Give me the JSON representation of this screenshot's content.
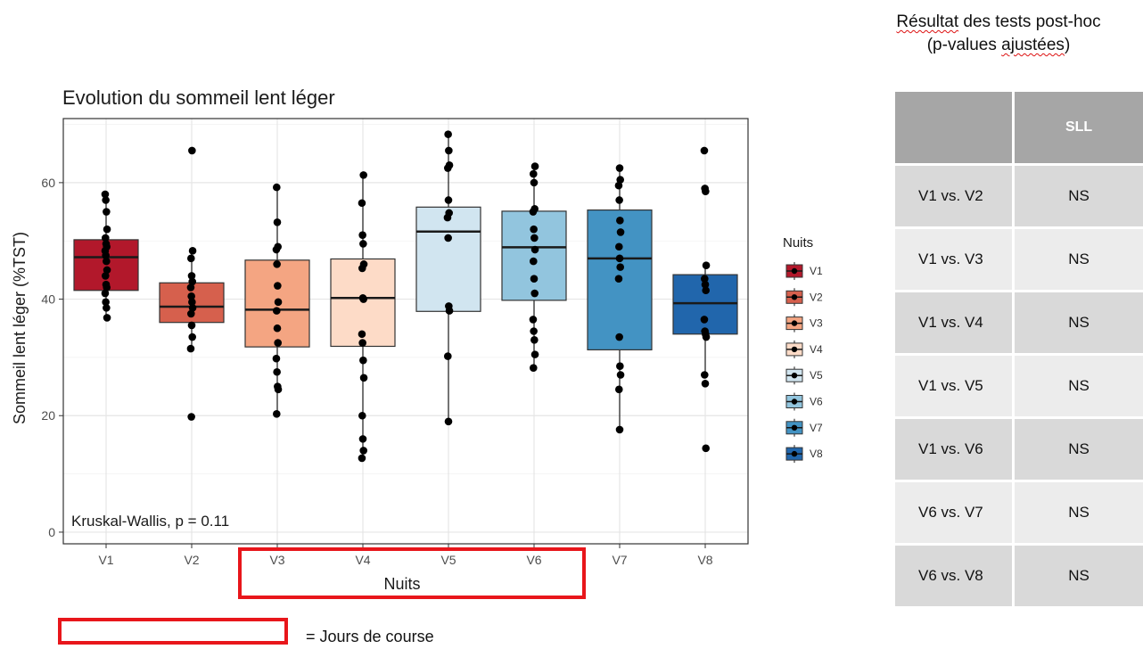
{
  "chart_data": {
    "type": "boxplot",
    "title": "Evolution du sommeil lent léger",
    "xlabel": "Nuits",
    "ylabel": "Sommeil lent léger (%TST)",
    "categories": [
      "V1",
      "V2",
      "V3",
      "V4",
      "V5",
      "V6",
      "V7",
      "V8"
    ],
    "ylim": [
      -2,
      71
    ],
    "yticks": [
      0,
      20,
      40,
      60
    ],
    "grid": true,
    "legend": {
      "title": "Nuits",
      "position": "right"
    },
    "annotation": "Kruskal-Wallis, p = 0.11",
    "colors": [
      "#b2182b",
      "#d6604d",
      "#f4a582",
      "#fddbc7",
      "#d1e5f0",
      "#92c5de",
      "#4393c3",
      "#2166ac"
    ],
    "boxes": [
      {
        "name": "V1",
        "q1": 41.5,
        "median": 47.2,
        "q3": 50.2,
        "whisker_low": 36.8,
        "whisker_high": 58.0
      },
      {
        "name": "V2",
        "q1": 36.0,
        "median": 38.7,
        "q3": 42.8,
        "whisker_low": 31.5,
        "whisker_high": 48.3
      },
      {
        "name": "V3",
        "q1": 31.8,
        "median": 38.2,
        "q3": 46.7,
        "whisker_low": 20.3,
        "whisker_high": 59.2
      },
      {
        "name": "V4",
        "q1": 31.9,
        "median": 40.2,
        "q3": 46.9,
        "whisker_low": 12.7,
        "whisker_high": 61.3
      },
      {
        "name": "V5",
        "q1": 37.9,
        "median": 51.6,
        "q3": 55.8,
        "whisker_low": 19.0,
        "whisker_high": 68.3
      },
      {
        "name": "V6",
        "q1": 39.8,
        "median": 48.9,
        "q3": 55.1,
        "whisker_low": 28.2,
        "whisker_high": 62.8
      },
      {
        "name": "V7",
        "q1": 31.3,
        "median": 47.0,
        "q3": 55.3,
        "whisker_low": 17.6,
        "whisker_high": 62.5
      },
      {
        "name": "V8",
        "q1": 34.0,
        "median": 39.3,
        "q3": 44.2,
        "whisker_low": 27.0,
        "whisker_high": 45.8
      }
    ],
    "points": [
      [
        58.0,
        57.0,
        55.0,
        52.0,
        50.5,
        49.5,
        49.0,
        48.3,
        47.5,
        46.5,
        45.0,
        44.0,
        42.5,
        42.0,
        41.0,
        39.5,
        38.5,
        36.8
      ],
      [
        65.5,
        48.3,
        47.0,
        44.0,
        43.0,
        42.0,
        40.5,
        39.5,
        38.5,
        37.5,
        35.5,
        33.5,
        31.5,
        19.8
      ],
      [
        59.2,
        53.2,
        49.0,
        48.5,
        46.0,
        42.3,
        39.5,
        38.0,
        35.0,
        32.5,
        29.8,
        27.5,
        25.0,
        24.5,
        20.3
      ],
      [
        61.3,
        56.5,
        51.0,
        49.5,
        46.0,
        45.3,
        40.2,
        40.0,
        34.0,
        32.5,
        29.5,
        26.5,
        20.0,
        16.0,
        14.0,
        12.7
      ],
      [
        68.3,
        65.5,
        63.0,
        62.5,
        57.0,
        54.8,
        54.0,
        50.5,
        38.8,
        38.0,
        30.2,
        19.0
      ],
      [
        62.8,
        61.5,
        60.0,
        55.5,
        55.0,
        52.0,
        50.5,
        48.5,
        46.5,
        43.5,
        41.0,
        36.5,
        34.5,
        33.0,
        30.5,
        28.2
      ],
      [
        62.5,
        60.5,
        59.5,
        57.0,
        53.5,
        51.5,
        49.0,
        47.0,
        45.5,
        43.5,
        33.5,
        28.5,
        27.0,
        24.5,
        17.6
      ],
      [
        65.5,
        59.0,
        58.5,
        45.8,
        43.5,
        42.5,
        41.5,
        36.5,
        34.5,
        34.0,
        33.5,
        27.0,
        25.5,
        14.4
      ]
    ]
  },
  "highlight": {
    "legend_text": "= Jours de course",
    "color": "#e8161b"
  },
  "posthoc_table": {
    "heading_line1_underlined": "Résultat",
    "heading_line1_rest": " des tests post-hoc",
    "heading_line2_pre": "(p-values ",
    "heading_line2_underlined": "ajustées",
    "heading_line2_post": ")",
    "header_blank": "",
    "header": "SLL",
    "rows": [
      {
        "pair": "V1 vs. V2",
        "result": "NS"
      },
      {
        "pair": "V1 vs. V3",
        "result": "NS"
      },
      {
        "pair": "V1 vs. V4",
        "result": "NS"
      },
      {
        "pair": "V1 vs. V5",
        "result": "NS"
      },
      {
        "pair": "V1 vs. V6",
        "result": "NS"
      },
      {
        "pair": "V6 vs. V7",
        "result": "NS"
      },
      {
        "pair": "V6 vs. V8",
        "result": "NS"
      }
    ]
  }
}
